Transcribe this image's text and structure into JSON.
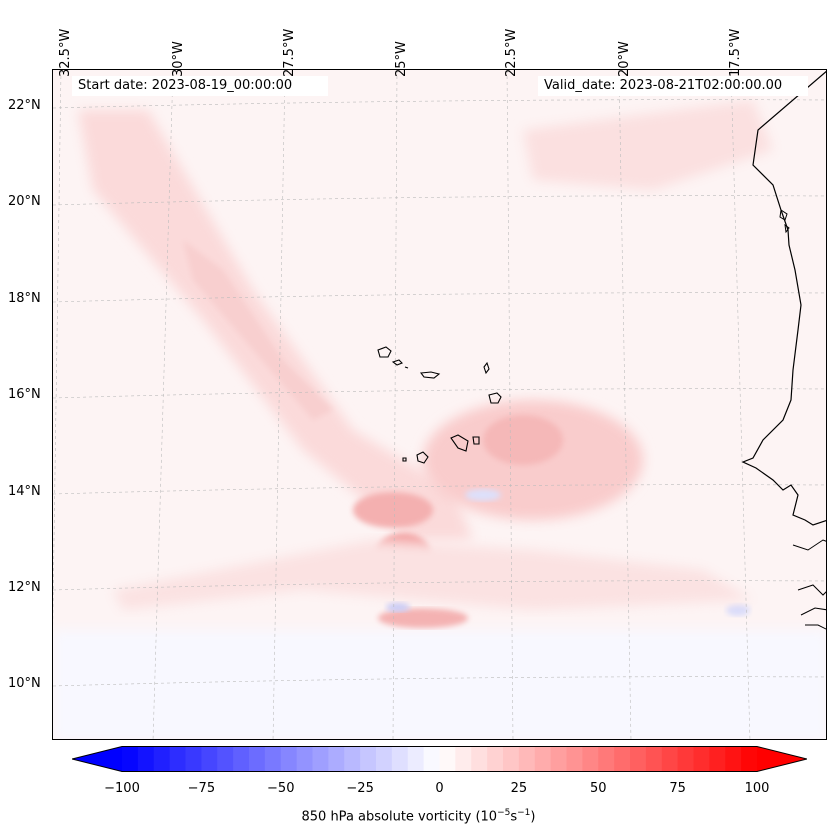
{
  "map": {
    "start_date": "Start date: 2023-08-19_00:00:00",
    "valid_date": "Valid_date: 2023-08-21T02:00:00.00",
    "lon_labels": [
      "32.5°W",
      "30°W",
      "27.5°W",
      "25°W",
      "22.5°W",
      "20°W",
      "17.5°W"
    ],
    "lat_labels": [
      "22°N",
      "20°N",
      "18°N",
      "16°N",
      "14°N",
      "12°N",
      "10°N"
    ],
    "region": "Cape Verde Islands and West African coast"
  },
  "colorbar": {
    "label_prefix": "850 hPa absolute vorticity (10",
    "label_exp1": "−5",
    "label_mid": "s",
    "label_exp2": "−1",
    "label_suffix": ")",
    "ticks": [
      "−100",
      "−75",
      "−50",
      "−25",
      "0",
      "25",
      "50",
      "75",
      "100"
    ],
    "min": -100,
    "max": 100,
    "levels": 40,
    "colors": {
      "low": "#0000ff",
      "mid": "#ffffff",
      "high": "#ff0000"
    }
  }
}
